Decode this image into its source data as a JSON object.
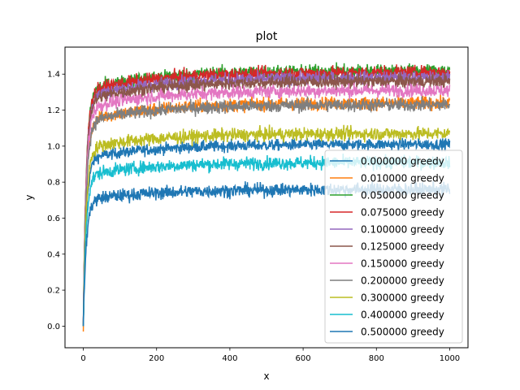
{
  "chart_data": {
    "type": "line",
    "title": "plot",
    "xlabel": "x",
    "ylabel": "y",
    "xlim": [
      -50,
      1050
    ],
    "ylim": [
      -0.12,
      1.55
    ],
    "x_ticks": [
      0,
      200,
      400,
      600,
      800,
      1000
    ],
    "y_ticks": [
      0.0,
      0.2,
      0.4,
      0.6,
      0.8,
      1.0,
      1.2,
      1.4
    ],
    "x_tick_labels": [
      "0",
      "200",
      "400",
      "600",
      "800",
      "1000"
    ],
    "y_tick_labels": [
      "0.0",
      "0.2",
      "0.4",
      "0.6",
      "0.8",
      "1.0",
      "1.2",
      "1.4"
    ],
    "x_range": [
      0,
      1000
    ],
    "grid": false,
    "legend_position": "lower-right",
    "series": [
      {
        "name": "0.000000 greedy",
        "color": "#1f77b4",
        "start": 0.0,
        "plateau": 1.01,
        "noise": 0.03
      },
      {
        "name": "0.010000 greedy",
        "color": "#ff7f0e",
        "start": -0.03,
        "plateau": 1.24,
        "noise": 0.035
      },
      {
        "name": "0.050000 greedy",
        "color": "#2ca02c",
        "start": 0.0,
        "plateau": 1.42,
        "noise": 0.035
      },
      {
        "name": "0.075000 greedy",
        "color": "#d62728",
        "start": 0.0,
        "plateau": 1.41,
        "noise": 0.035
      },
      {
        "name": "0.100000 greedy",
        "color": "#9467bd",
        "start": 0.0,
        "plateau": 1.38,
        "noise": 0.035
      },
      {
        "name": "0.125000 greedy",
        "color": "#8c564b",
        "start": 0.0,
        "plateau": 1.36,
        "noise": 0.035
      },
      {
        "name": "0.150000 greedy",
        "color": "#e377c2",
        "start": 0.0,
        "plateau": 1.31,
        "noise": 0.035
      },
      {
        "name": "0.200000 greedy",
        "color": "#7f7f7f",
        "start": 0.0,
        "plateau": 1.23,
        "noise": 0.035
      },
      {
        "name": "0.300000 greedy",
        "color": "#bcbd22",
        "start": 0.0,
        "plateau": 1.07,
        "noise": 0.035
      },
      {
        "name": "0.400000 greedy",
        "color": "#17becf",
        "start": 0.0,
        "plateau": 0.91,
        "noise": 0.035
      },
      {
        "name": "0.500000 greedy",
        "color": "#1f77b4",
        "start": 0.0,
        "plateau": 0.76,
        "noise": 0.035
      }
    ]
  }
}
